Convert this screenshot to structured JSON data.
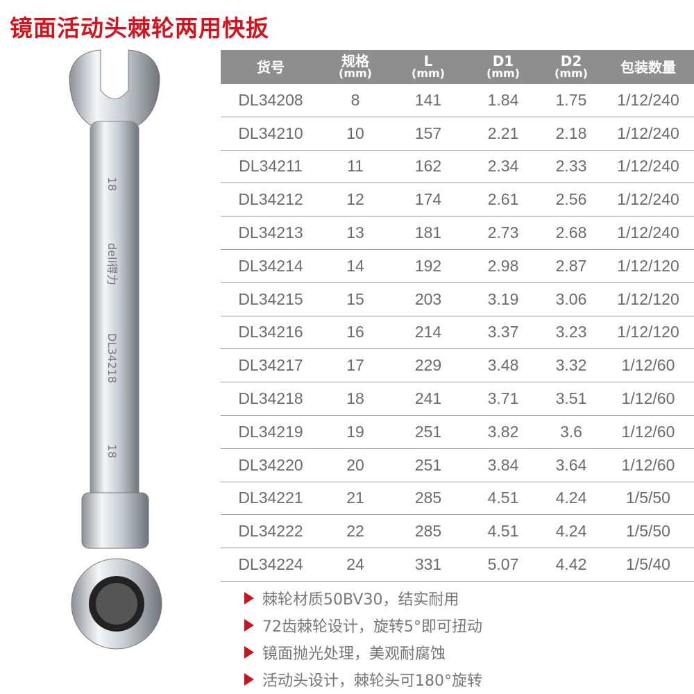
{
  "title": "镜面活动头棘轮两用快扳",
  "product_marking": {
    "size": "18",
    "brand": "deli得力",
    "model": "DL34218"
  },
  "table": {
    "headers": [
      {
        "label": "货号",
        "unit": ""
      },
      {
        "label": "规格",
        "unit": "(mm)"
      },
      {
        "label": "L",
        "unit": "(mm)"
      },
      {
        "label": "D1",
        "unit": "(mm)"
      },
      {
        "label": "D2",
        "unit": "(mm)"
      },
      {
        "label": "包装数量",
        "unit": ""
      }
    ],
    "rows": [
      [
        "DL34208",
        "8",
        "141",
        "1.84",
        "1.75",
        "1/12/240"
      ],
      [
        "DL34210",
        "10",
        "157",
        "2.21",
        "2.18",
        "1/12/240"
      ],
      [
        "DL34211",
        "11",
        "162",
        "2.34",
        "2.33",
        "1/12/240"
      ],
      [
        "DL34212",
        "12",
        "174",
        "2.61",
        "2.56",
        "1/12/240"
      ],
      [
        "DL34213",
        "13",
        "181",
        "2.73",
        "2.68",
        "1/12/240"
      ],
      [
        "DL34214",
        "14",
        "192",
        "2.98",
        "2.87",
        "1/12/120"
      ],
      [
        "DL34215",
        "15",
        "203",
        "3.19",
        "3.06",
        "1/12/120"
      ],
      [
        "DL34216",
        "16",
        "214",
        "3.37",
        "3.23",
        "1/12/120"
      ],
      [
        "DL34217",
        "17",
        "229",
        "3.48",
        "3.32",
        "1/12/60"
      ],
      [
        "DL34218",
        "18",
        "241",
        "3.71",
        "3.51",
        "1/12/60"
      ],
      [
        "DL34219",
        "19",
        "251",
        "3.82",
        "3.6",
        "1/12/60"
      ],
      [
        "DL34220",
        "20",
        "251",
        "3.84",
        "3.64",
        "1/12/60"
      ],
      [
        "DL34221",
        "21",
        "285",
        "4.51",
        "4.24",
        "1/5/50"
      ],
      [
        "DL34222",
        "22",
        "285",
        "4.51",
        "4.24",
        "1/5/50"
      ],
      [
        "DL34224",
        "24",
        "331",
        "5.07",
        "4.42",
        "1/5/40"
      ]
    ]
  },
  "features": [
    "棘轮材质50BV30，结实耐用",
    "72齿棘轮设计，旋转5°即可扭动",
    "镜面抛光处理，美观耐腐蚀",
    "活动头设计，棘轮头可180°旋转"
  ],
  "colors": {
    "accent": "#d2141e",
    "header_bg": "#8e8e8e",
    "text": "#6b6b6b"
  }
}
